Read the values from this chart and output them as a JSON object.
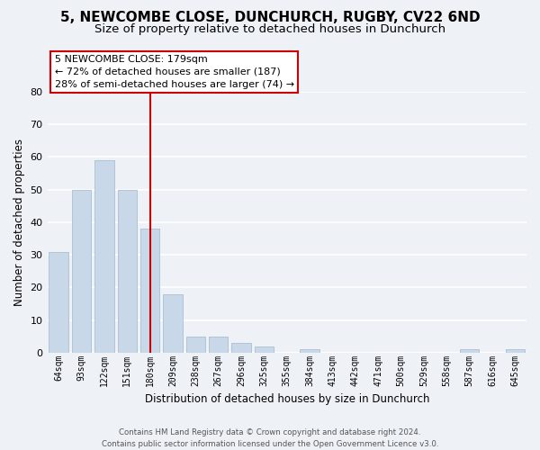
{
  "title": "5, NEWCOMBE CLOSE, DUNCHURCH, RUGBY, CV22 6ND",
  "subtitle": "Size of property relative to detached houses in Dunchurch",
  "bar_labels": [
    "64sqm",
    "93sqm",
    "122sqm",
    "151sqm",
    "180sqm",
    "209sqm",
    "238sqm",
    "267sqm",
    "296sqm",
    "325sqm",
    "355sqm",
    "384sqm",
    "413sqm",
    "442sqm",
    "471sqm",
    "500sqm",
    "529sqm",
    "558sqm",
    "587sqm",
    "616sqm",
    "645sqm"
  ],
  "bar_values": [
    31,
    50,
    59,
    50,
    38,
    18,
    5,
    5,
    3,
    2,
    0,
    1,
    0,
    0,
    0,
    0,
    0,
    0,
    1,
    0,
    1
  ],
  "bar_color": "#c8d8e8",
  "bar_edge_color": "#a0b8cc",
  "ylabel": "Number of detached properties",
  "xlabel": "Distribution of detached houses by size in Dunchurch",
  "ylim": [
    0,
    80
  ],
  "yticks": [
    0,
    10,
    20,
    30,
    40,
    50,
    60,
    70,
    80
  ],
  "vline_x": 4,
  "vline_color": "#cc0000",
  "annotation_title": "5 NEWCOMBE CLOSE: 179sqm",
  "annotation_line1": "← 72% of detached houses are smaller (187)",
  "annotation_line2": "28% of semi-detached houses are larger (74) →",
  "footer1": "Contains HM Land Registry data © Crown copyright and database right 2024.",
  "footer2": "Contains public sector information licensed under the Open Government Licence v3.0.",
  "background_color": "#eef2f7",
  "grid_color": "#ffffff",
  "title_fontsize": 11,
  "subtitle_fontsize": 9.5
}
